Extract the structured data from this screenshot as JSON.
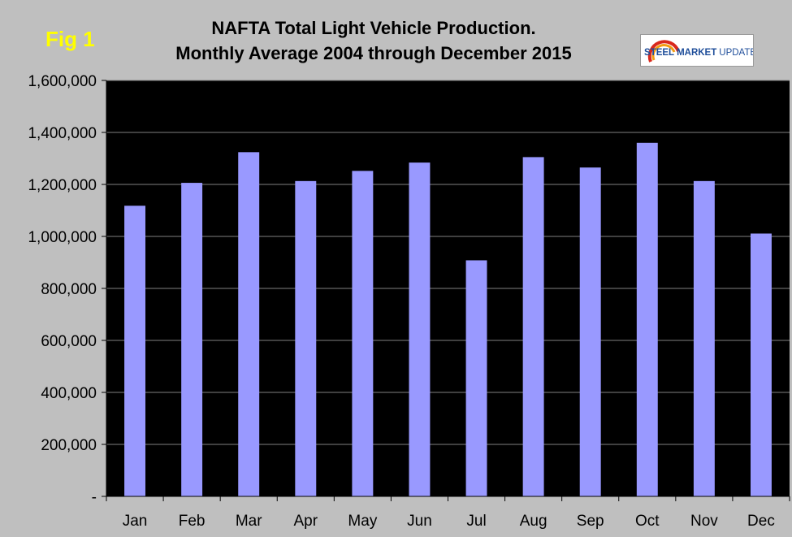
{
  "figure_label": "Fig 1",
  "logo": {
    "brand": "STEEL",
    "name": "MARKET",
    "suffix": "UPDATE"
  },
  "colors": {
    "background": "#bfbfbf",
    "plot": "#000000",
    "bar": "#9999ff",
    "gridline": "#808080",
    "fig_label": "#ffff00",
    "logo_blue": "#1f4e9a",
    "logo_red": "#d9281c",
    "logo_orange": "#f39c12"
  },
  "chart_data": {
    "type": "bar",
    "title": "NAFTA Total Light Vehicle Production.",
    "subtitle": "Monthly Average 2004 through December 2015",
    "xlabel": "",
    "ylabel": "",
    "categories": [
      "Jan",
      "Feb",
      "Mar",
      "Apr",
      "May",
      "Jun",
      "Jul",
      "Aug",
      "Sep",
      "Oct",
      "Nov",
      "Dec"
    ],
    "values": [
      1118000,
      1206000,
      1324000,
      1213000,
      1252000,
      1284000,
      908000,
      1305000,
      1265000,
      1360000,
      1213000,
      1011000
    ],
    "ylim": [
      0,
      1600000
    ],
    "yticks": [
      0,
      200000,
      400000,
      600000,
      800000,
      1000000,
      1200000,
      1400000,
      1600000
    ],
    "ytick_labels": [
      "-",
      "200,000",
      "400,000",
      "600,000",
      "800,000",
      "1,000,000",
      "1,200,000",
      "1,400,000",
      "1,600,000"
    ],
    "grid": true
  }
}
